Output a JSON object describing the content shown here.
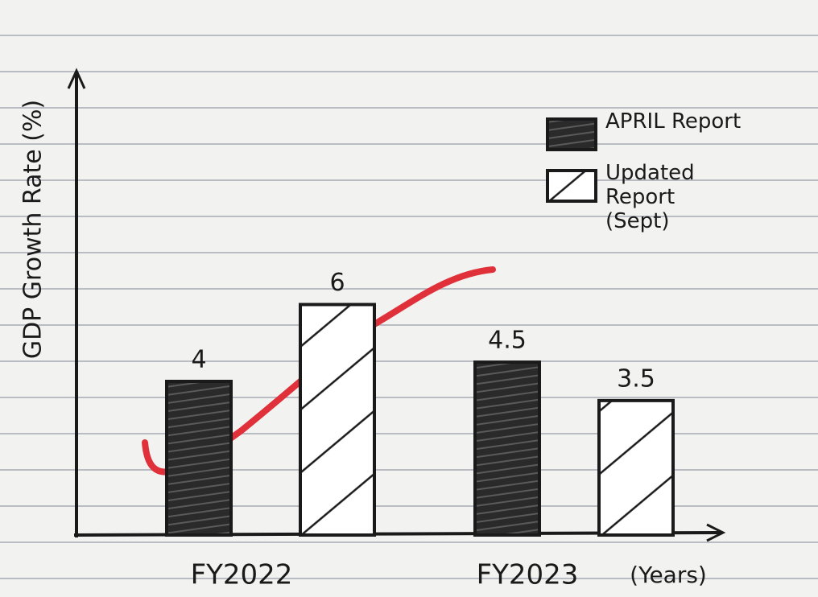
{
  "chart_data": {
    "type": "bar",
    "y_label": "GDP Growth Rate (%)",
    "x_label": "(Years)",
    "categories": [
      "FY2022",
      "FY2023"
    ],
    "series": [
      {
        "name": "APRIL Report",
        "color": "#2a2a2a",
        "values": [
          4,
          4.5
        ]
      },
      {
        "name": "Updated Report (Sept)",
        "color": "#ffffff",
        "values": [
          6,
          3.5
        ]
      }
    ],
    "ylim": [
      0,
      12
    ],
    "legend": "upper right"
  }
}
